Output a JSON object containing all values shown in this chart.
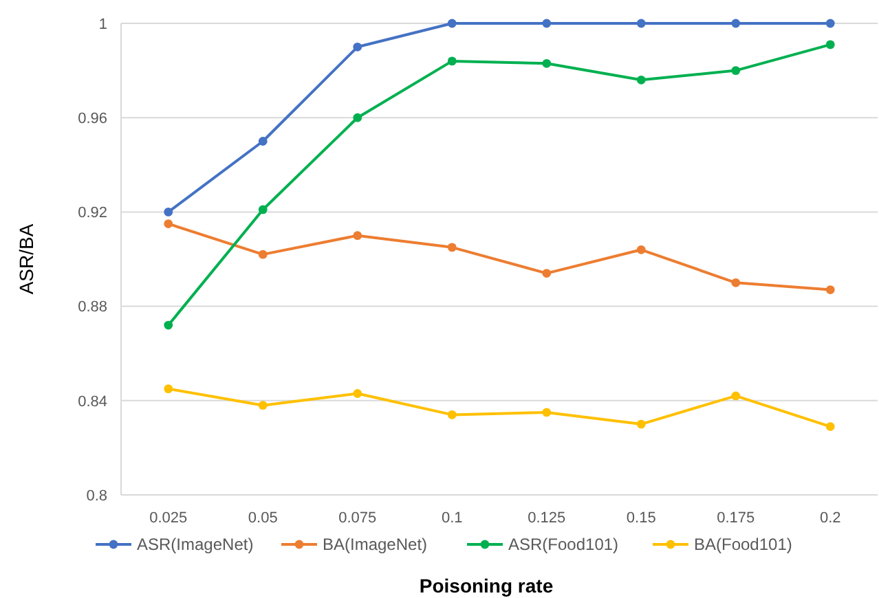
{
  "chart_data": {
    "type": "line",
    "xlabel": "Poisoning rate",
    "ylabel": "ASR/BA",
    "categories": [
      "0.025",
      "0.05",
      "0.075",
      "0.1",
      "0.125",
      "0.15",
      "0.175",
      "0.2"
    ],
    "series": [
      {
        "name": "ASR(ImageNet)",
        "color": "#4472c4",
        "values": [
          0.92,
          0.95,
          0.99,
          1,
          1,
          1,
          1,
          1
        ]
      },
      {
        "name": "BA(ImageNet)",
        "color": "#ed7d31",
        "values": [
          0.915,
          0.902,
          0.91,
          0.905,
          0.894,
          0.904,
          0.89,
          0.887
        ]
      },
      {
        "name": "ASR(Food101)",
        "color": "#00b050",
        "values": [
          0.872,
          0.921,
          0.96,
          0.984,
          0.983,
          0.976,
          0.98,
          0.991
        ]
      },
      {
        "name": "BA(Food101)",
        "color": "#ffc000",
        "values": [
          0.845,
          0.838,
          0.843,
          0.834,
          0.835,
          0.83,
          0.842,
          0.829
        ]
      }
    ],
    "ylim": [
      0.8,
      1
    ],
    "yticks": [
      0.8,
      0.84,
      0.88,
      0.92,
      0.96,
      1
    ],
    "grid": "y",
    "legend": "bottom",
    "marker": "circle",
    "line_style": "solid"
  }
}
